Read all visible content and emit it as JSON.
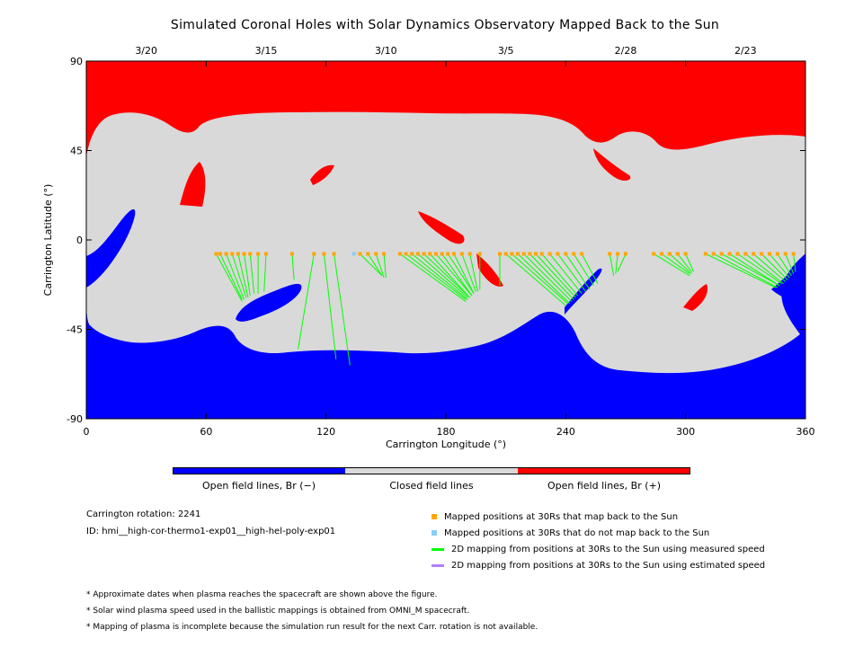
{
  "title": "Simulated Coronal Holes with Solar Dynamics Observatory Mapped Back to the Sun",
  "colors": {
    "open_negative": "#0000ff",
    "closed": "#d9d9d9",
    "open_positive": "#ff0000",
    "mapped": "#ffa500",
    "unmapped": "#87cefa",
    "measured_line": "#00ff00",
    "estimated_line": "#b37fff"
  },
  "colorbar": {
    "labels": [
      "Open field lines, Br (−)",
      "Closed field lines",
      "Open field lines, Br (+)"
    ]
  },
  "info": {
    "rotation": "Carrington rotation: 2241",
    "id": "ID: hmi__high-cor-thermo1-exp01__high-hel-poly-exp01"
  },
  "legend": [
    {
      "label": "Mapped positions at 30Rs that map back to the Sun",
      "icon": "orange-square"
    },
    {
      "label": "Mapped positions at 30Rs that do not map back to the Sun",
      "icon": "lightblue-square"
    },
    {
      "label": "2D mapping from positions at 30Rs to the Sun using measured speed",
      "icon": "green-line"
    },
    {
      "label": "2D mapping from positions at 30Rs to the Sun using estimated speed",
      "icon": "purple-line"
    }
  ],
  "notes": [
    "* Approximate dates when plasma reaches the spacecraft are shown above the figure.",
    "* Solar wind plasma speed used in the ballistic mappings is obtained from OMNI_M spacecraft.",
    "* Mapping of plasma is incomplete because the simulation run result for the next Carr. rotation is not available."
  ],
  "chart_data": {
    "type": "heatmap",
    "title": "Simulated Coronal Holes with Solar Dynamics Observatory Mapped Back to the Sun",
    "xlabel": "Carrington Longitude (°)",
    "ylabel": "Carrington Latitude (°)",
    "xlim": [
      0,
      360
    ],
    "ylim": [
      -90,
      90
    ],
    "x_ticks": [
      0,
      60,
      120,
      180,
      240,
      300,
      360
    ],
    "y_ticks": [
      90,
      45,
      0,
      -45,
      -90
    ],
    "top_axis_dates": [
      {
        "label": "3/20",
        "lon": 30
      },
      {
        "label": "3/15",
        "lon": 90
      },
      {
        "label": "3/10",
        "lon": 150
      },
      {
        "label": "3/5",
        "lon": 210
      },
      {
        "label": "2/28",
        "lon": 270
      },
      {
        "label": "2/23",
        "lon": 330
      }
    ],
    "mapped_positions_lat": -7,
    "mappings": [
      {
        "from_lon": 65,
        "to_lon": 78,
        "to_lat": -31,
        "maps_back": true
      },
      {
        "from_lon": 67,
        "to_lon": 78,
        "to_lat": -30,
        "maps_back": true
      },
      {
        "from_lon": 70,
        "to_lon": 79,
        "to_lat": -30,
        "maps_back": true
      },
      {
        "from_lon": 73,
        "to_lon": 80,
        "to_lat": -29,
        "maps_back": true
      },
      {
        "from_lon": 76,
        "to_lon": 81,
        "to_lat": -29,
        "maps_back": true
      },
      {
        "from_lon": 79,
        "to_lon": 82,
        "to_lat": -28,
        "maps_back": true
      },
      {
        "from_lon": 82,
        "to_lon": 84,
        "to_lat": -27,
        "maps_back": true
      },
      {
        "from_lon": 86,
        "to_lon": 86,
        "to_lat": -27,
        "maps_back": true
      },
      {
        "from_lon": 90,
        "to_lon": 89,
        "to_lat": -26,
        "maps_back": true
      },
      {
        "from_lon": 103,
        "to_lon": 104,
        "to_lat": -20,
        "maps_back": true
      },
      {
        "from_lon": 114,
        "to_lon": 106,
        "to_lat": -55,
        "maps_back": true
      },
      {
        "from_lon": 119,
        "to_lon": 125,
        "to_lat": -60,
        "maps_back": true
      },
      {
        "from_lon": 124,
        "to_lon": 132,
        "to_lat": -63,
        "maps_back": true
      },
      {
        "from_lon": 134,
        "to_lon": 134,
        "to_lat": -7,
        "maps_back": false
      },
      {
        "from_lon": 137,
        "to_lon": 148,
        "to_lat": -18,
        "maps_back": true
      },
      {
        "from_lon": 141,
        "to_lon": 148,
        "to_lat": -18,
        "maps_back": true
      },
      {
        "from_lon": 145,
        "to_lon": 149,
        "to_lat": -19,
        "maps_back": true
      },
      {
        "from_lon": 149,
        "to_lon": 150,
        "to_lat": -19,
        "maps_back": true
      },
      {
        "from_lon": 157,
        "to_lon": 190,
        "to_lat": -31,
        "maps_back": true
      },
      {
        "from_lon": 160,
        "to_lon": 190,
        "to_lat": -30,
        "maps_back": true
      },
      {
        "from_lon": 163,
        "to_lon": 191,
        "to_lat": -30,
        "maps_back": true
      },
      {
        "from_lon": 166,
        "to_lon": 191,
        "to_lat": -29,
        "maps_back": true
      },
      {
        "from_lon": 169,
        "to_lon": 192,
        "to_lat": -29,
        "maps_back": true
      },
      {
        "from_lon": 172,
        "to_lon": 192,
        "to_lat": -29,
        "maps_back": true
      },
      {
        "from_lon": 175,
        "to_lon": 193,
        "to_lat": -28,
        "maps_back": true
      },
      {
        "from_lon": 178,
        "to_lon": 193,
        "to_lat": -28,
        "maps_back": true
      },
      {
        "from_lon": 181,
        "to_lon": 194,
        "to_lat": -27,
        "maps_back": true
      },
      {
        "from_lon": 184,
        "to_lon": 194,
        "to_lat": -27,
        "maps_back": true
      },
      {
        "from_lon": 188,
        "to_lon": 195,
        "to_lat": -26,
        "maps_back": true
      },
      {
        "from_lon": 192,
        "to_lon": 196,
        "to_lat": -26,
        "maps_back": true
      },
      {
        "from_lon": 197,
        "to_lon": 197,
        "to_lat": -25,
        "maps_back": true
      },
      {
        "from_lon": 207,
        "to_lon": 207,
        "to_lat": -23,
        "maps_back": true
      },
      {
        "from_lon": 210,
        "to_lon": 240,
        "to_lat": -33,
        "maps_back": true
      },
      {
        "from_lon": 213,
        "to_lon": 241,
        "to_lat": -32,
        "maps_back": true
      },
      {
        "from_lon": 216,
        "to_lon": 242,
        "to_lat": -32,
        "maps_back": true
      },
      {
        "from_lon": 219,
        "to_lon": 243,
        "to_lat": -31,
        "maps_back": true
      },
      {
        "from_lon": 222,
        "to_lon": 244,
        "to_lat": -30,
        "maps_back": true
      },
      {
        "from_lon": 225,
        "to_lon": 245,
        "to_lat": -29,
        "maps_back": true
      },
      {
        "from_lon": 228,
        "to_lon": 246,
        "to_lat": -28,
        "maps_back": true
      },
      {
        "from_lon": 232,
        "to_lon": 248,
        "to_lat": -27,
        "maps_back": true
      },
      {
        "from_lon": 236,
        "to_lon": 250,
        "to_lat": -26,
        "maps_back": true
      },
      {
        "from_lon": 240,
        "to_lon": 252,
        "to_lat": -25,
        "maps_back": true
      },
      {
        "from_lon": 244,
        "to_lon": 254,
        "to_lat": -23,
        "maps_back": true
      },
      {
        "from_lon": 248,
        "to_lon": 256,
        "to_lat": -22,
        "maps_back": true
      },
      {
        "from_lon": 262,
        "to_lon": 264,
        "to_lat": -18,
        "maps_back": true
      },
      {
        "from_lon": 266,
        "to_lon": 265,
        "to_lat": -17,
        "maps_back": true
      },
      {
        "from_lon": 270,
        "to_lon": 266,
        "to_lat": -16,
        "maps_back": true
      },
      {
        "from_lon": 284,
        "to_lon": 302,
        "to_lat": -18,
        "maps_back": true
      },
      {
        "from_lon": 288,
        "to_lon": 302,
        "to_lat": -17,
        "maps_back": true
      },
      {
        "from_lon": 292,
        "to_lon": 303,
        "to_lat": -17,
        "maps_back": true
      },
      {
        "from_lon": 296,
        "to_lon": 303,
        "to_lat": -16,
        "maps_back": true
      },
      {
        "from_lon": 300,
        "to_lon": 304,
        "to_lat": -16,
        "maps_back": true
      },
      {
        "from_lon": 310,
        "to_lon": 345,
        "to_lat": -24,
        "maps_back": true
      },
      {
        "from_lon": 314,
        "to_lon": 346,
        "to_lat": -24,
        "maps_back": true
      },
      {
        "from_lon": 318,
        "to_lon": 347,
        "to_lat": -23,
        "maps_back": true
      },
      {
        "from_lon": 322,
        "to_lon": 347,
        "to_lat": -23,
        "maps_back": true
      },
      {
        "from_lon": 326,
        "to_lon": 348,
        "to_lat": -22,
        "maps_back": true
      },
      {
        "from_lon": 330,
        "to_lon": 349,
        "to_lat": -22,
        "maps_back": true
      },
      {
        "from_lon": 334,
        "to_lon": 350,
        "to_lat": -21,
        "maps_back": true
      },
      {
        "from_lon": 338,
        "to_lon": 351,
        "to_lat": -20,
        "maps_back": true
      },
      {
        "from_lon": 342,
        "to_lon": 352,
        "to_lat": -19,
        "maps_back": true
      },
      {
        "from_lon": 346,
        "to_lon": 353,
        "to_lat": -18,
        "maps_back": true
      },
      {
        "from_lon": 350,
        "to_lon": 354,
        "to_lat": -17,
        "maps_back": true
      },
      {
        "from_lon": 354,
        "to_lon": 355,
        "to_lat": -16,
        "maps_back": true
      }
    ]
  }
}
